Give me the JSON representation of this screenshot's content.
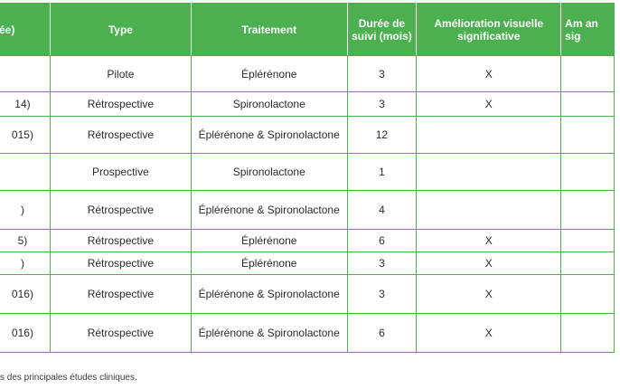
{
  "table": {
    "headers": [
      "ée)",
      "Type",
      "Traitement",
      "Durée de suivi (mois)",
      "Amélioration visuelle significative",
      "Am an sig"
    ],
    "rows": [
      {
        "ref": "",
        "type": "Pilote",
        "treatment": "Éplérénone",
        "duration": "3",
        "improvement": "X",
        "next": ""
      },
      {
        "ref": "14)",
        "type": "Rétrospective",
        "treatment": "Spironolactone",
        "duration": "3",
        "improvement": "X",
        "next": ""
      },
      {
        "ref": "015)",
        "type": "Rétrospective",
        "treatment": "Éplérénone & Spironolactone",
        "duration": "12",
        "improvement": "",
        "next": ""
      },
      {
        "ref": "",
        "type": "Prospective",
        "treatment": "Spironolactone",
        "duration": "1",
        "improvement": "",
        "next": ""
      },
      {
        "ref": ")",
        "type": "Rétrospective",
        "treatment": "Éplérénone & Spironolactone",
        "duration": "4",
        "improvement": "",
        "next": ""
      },
      {
        "ref": "5)",
        "type": "Rétrospective",
        "treatment": "Éplérénone",
        "duration": "6",
        "improvement": "X",
        "next": ""
      },
      {
        "ref": ")",
        "type": "Rétrospective",
        "treatment": "Éplérénone",
        "duration": "3",
        "improvement": "X",
        "next": ""
      },
      {
        "ref": "016)",
        "type": "Rétrospective",
        "treatment": "Éplérénone & Spironolactone",
        "duration": "3",
        "improvement": "X",
        "next": ""
      },
      {
        "ref": "016)",
        "type": "Rétrospective",
        "treatment": "Éplérénone & Spironolactone",
        "duration": "6",
        "improvement": "X",
        "next": ""
      }
    ]
  },
  "caption": "s des principales études cliniques.",
  "colors": {
    "header_bg": "#4cb050",
    "border": "#4cae4c"
  }
}
